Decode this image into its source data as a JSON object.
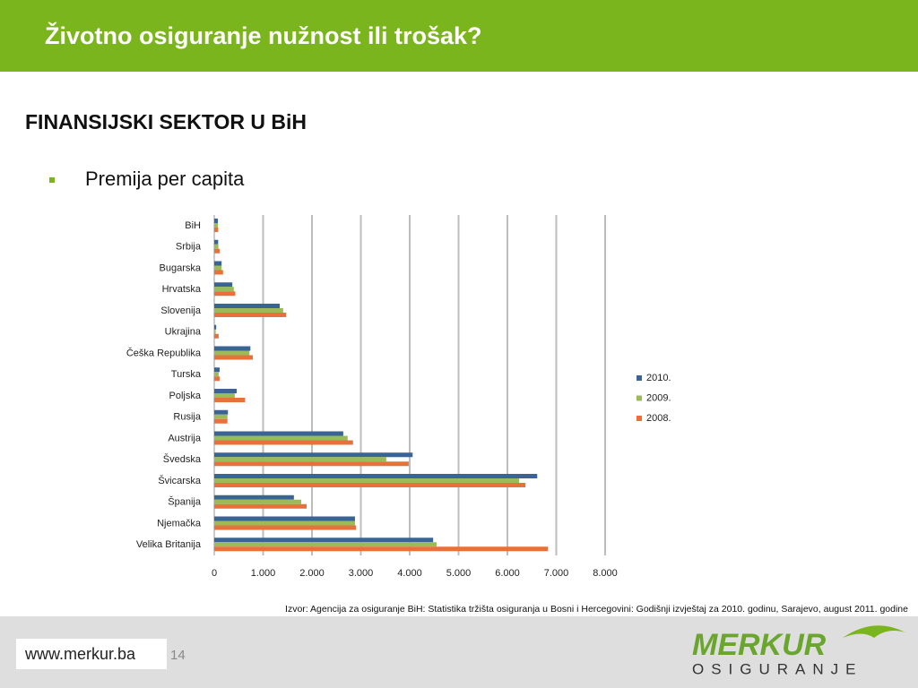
{
  "header": {
    "title": "Životno osiguranje nužnost ili trošak?"
  },
  "section": {
    "heading": "FINANSIJSKI SEKTOR U BiH",
    "bullet": "Premija per capita"
  },
  "chart_data": {
    "type": "bar",
    "orientation": "horizontal",
    "categories": [
      "BiH",
      "Srbija",
      "Bugarska",
      "Hrvatska",
      "Slovenija",
      "Ukrajina",
      "Češka Republika",
      "Turska",
      "Poljska",
      "Rusija",
      "Austrija",
      "Švedska",
      "Švicarska",
      "Španija",
      "Njemačka",
      "Velika Britanija"
    ],
    "series": [
      {
        "name": "2010.",
        "color": "#3b6496",
        "values": [
          75,
          80,
          150,
          370,
          1340,
          40,
          740,
          110,
          460,
          280,
          2640,
          4060,
          6610,
          1630,
          2880,
          4480
        ]
      },
      {
        "name": "2009.",
        "color": "#9bbb59",
        "values": [
          75,
          85,
          150,
          400,
          1410,
          30,
          720,
          90,
          420,
          270,
          2730,
          3520,
          6240,
          1780,
          2880,
          4550
        ]
      },
      {
        "name": "2008.",
        "color": "#e8703a",
        "values": [
          80,
          110,
          180,
          430,
          1470,
          90,
          790,
          110,
          630,
          270,
          2840,
          3980,
          6370,
          1890,
          2900,
          6830
        ]
      }
    ],
    "xlim": [
      0,
      8000
    ],
    "xticks": [
      0,
      {
        "value": 1000,
        "label": "1.000"
      },
      {
        "value": 2000,
        "label": "2.000"
      },
      {
        "value": 3000,
        "label": "3.000"
      },
      {
        "value": 4000,
        "label": "4.000"
      },
      {
        "value": 5000,
        "label": "5.000"
      },
      {
        "value": 6000,
        "label": "6.000"
      },
      {
        "value": 7000,
        "label": "7.000"
      },
      {
        "value": 8000,
        "label": "8.000"
      }
    ],
    "grid": true,
    "legend": "right"
  },
  "source": "Izvor: Agencija za osiguranje BiH: Statistika tržišta osiguranja u Bosni i Hercegovini: Godišnji izvještaj za 2010. godinu, Sarajevo, august 2011. godine",
  "footer": {
    "url": "www.merkur.ba",
    "page": "14",
    "logo": "MERKUR",
    "logo_sub": "OSIGURANJE"
  }
}
